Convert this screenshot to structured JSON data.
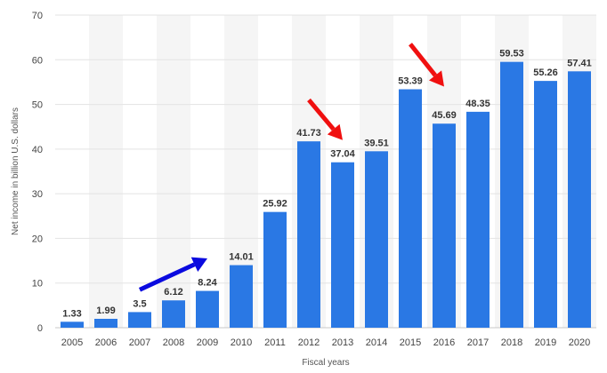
{
  "chart_data": {
    "type": "bar",
    "categories": [
      "2005",
      "2006",
      "2007",
      "2008",
      "2009",
      "2010",
      "2011",
      "2012",
      "2013",
      "2014",
      "2015",
      "2016",
      "2017",
      "2018",
      "2019",
      "2020"
    ],
    "values": [
      1.33,
      1.99,
      3.5,
      6.12,
      8.24,
      14.01,
      25.92,
      41.73,
      37.04,
      39.51,
      53.39,
      45.69,
      48.35,
      59.53,
      55.26,
      57.41
    ],
    "value_labels": [
      "1.33",
      "1.99",
      "3.5",
      "6.12",
      "8.24",
      "14.01",
      "25.92",
      "41.73",
      "37.04",
      "39.51",
      "53.39",
      "45.69",
      "48.35",
      "59.53",
      "55.26",
      "57.41"
    ],
    "xlabel": "Fiscal years",
    "ylabel": "Net income in billion U.S. dollars",
    "ylim": [
      0,
      70
    ],
    "yticks": [
      "0",
      "10",
      "20",
      "30",
      "40",
      "50",
      "60",
      "70"
    ],
    "grid": true,
    "alternating_column_bands": true,
    "annotations": [
      {
        "type": "arrow",
        "color": "#0a0adf",
        "from_x": "2007",
        "to_x": "2009",
        "from_y": 8.5,
        "to_y": 15.5
      },
      {
        "type": "arrow",
        "color": "#f01010",
        "from_x": "2012",
        "to_x": "2013",
        "from_y": 51,
        "to_y": 42
      },
      {
        "type": "arrow",
        "color": "#f01010",
        "from_x": "2015",
        "to_x": "2016",
        "from_y": 63.5,
        "to_y": 54
      }
    ],
    "colors": {
      "bar": "#2a78e4",
      "band": "#f5f5f5",
      "grid": "#e3e3e3"
    }
  }
}
